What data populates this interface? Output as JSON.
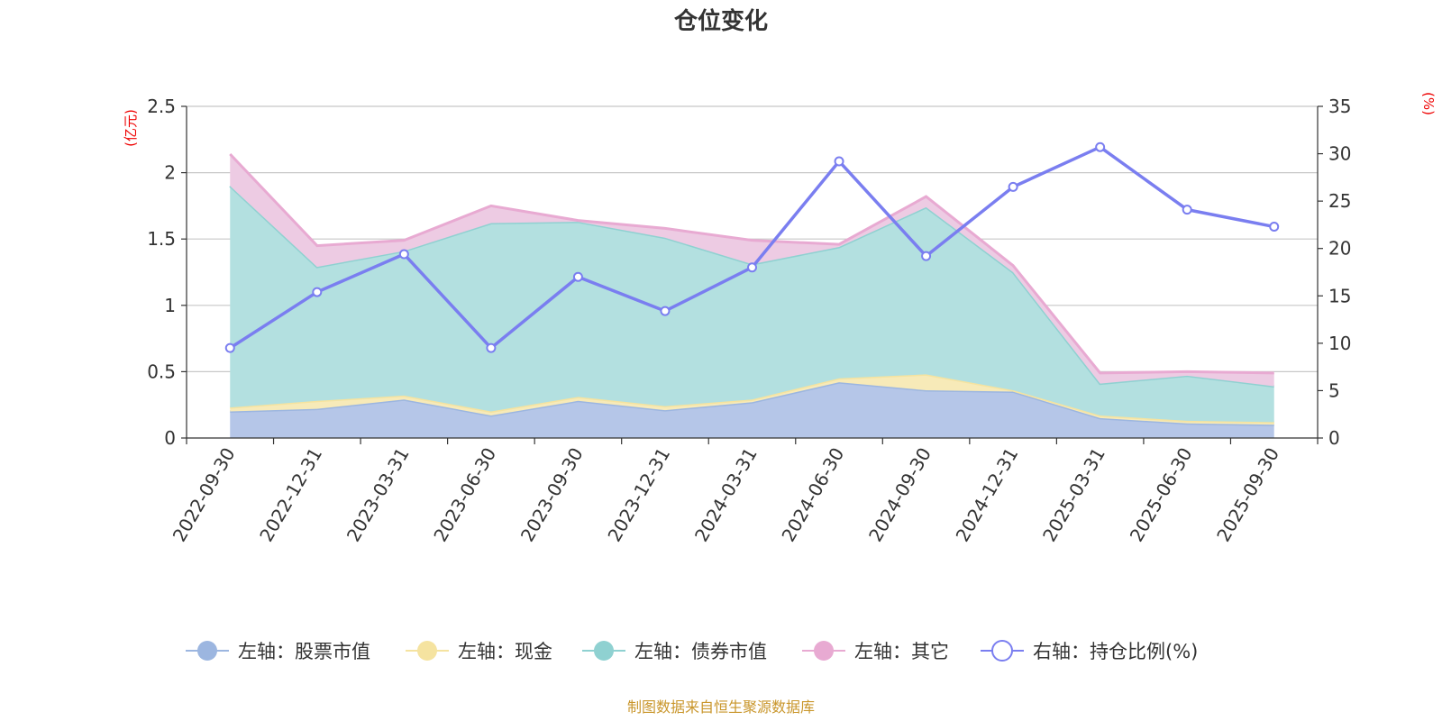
{
  "chart_data": {
    "type": "area",
    "title": "仓位变化",
    "categories": [
      "2022-09-30",
      "2022-12-31",
      "2023-03-31",
      "2023-06-30",
      "2023-09-30",
      "2023-12-31",
      "2024-03-31",
      "2024-06-30",
      "2024-09-30",
      "2024-12-31",
      "2025-03-31",
      "2025-06-30",
      "2025-09-30"
    ],
    "left_axis": {
      "unit": "(亿元)",
      "ylim": [
        0,
        2.5
      ],
      "ticks": [
        "0",
        "0.5",
        "1",
        "1.5",
        "2",
        "2.5"
      ],
      "tick_values": [
        0,
        0.5,
        1,
        1.5,
        2,
        2.5
      ]
    },
    "right_axis": {
      "unit": "(%)",
      "ylim": [
        0,
        35
      ],
      "ticks": [
        "0",
        "5",
        "10",
        "15",
        "20",
        "25",
        "30",
        "35"
      ],
      "tick_values": [
        0,
        5,
        10,
        15,
        20,
        25,
        30,
        35
      ]
    },
    "stacked": true,
    "series": [
      {
        "name": "左轴：股票市值",
        "axis": "left",
        "type": "area",
        "color": "#9cb6e0",
        "fill": "#b5c6e8",
        "values": [
          0.2,
          0.22,
          0.29,
          0.17,
          0.28,
          0.21,
          0.27,
          0.42,
          0.36,
          0.35,
          0.15,
          0.11,
          0.1
        ]
      },
      {
        "name": "左轴：现金",
        "axis": "left",
        "type": "area",
        "color": "#f5e3a0",
        "fill": "#f7eab8",
        "values": [
          0.03,
          0.06,
          0.03,
          0.03,
          0.03,
          0.03,
          0.02,
          0.03,
          0.12,
          0.01,
          0.02,
          0.02,
          0.02
        ]
      },
      {
        "name": "左轴：债券市值",
        "axis": "left",
        "type": "area",
        "color": "#8fd1d1",
        "fill": "#b3e0e0",
        "values": [
          1.67,
          1.01,
          1.09,
          1.42,
          1.32,
          1.27,
          1.02,
          0.99,
          1.26,
          0.89,
          0.24,
          0.34,
          0.27
        ]
      },
      {
        "name": "左轴：其它",
        "axis": "left",
        "type": "area",
        "color": "#e8aad2",
        "fill": "#edcbe3",
        "values": [
          0.24,
          0.16,
          0.08,
          0.13,
          0.01,
          0.07,
          0.18,
          0.02,
          0.08,
          0.05,
          0.08,
          0.03,
          0.1
        ]
      },
      {
        "name": "右轴：持仓比例(%)",
        "axis": "right",
        "type": "line",
        "color": "#7a7ef0",
        "values": [
          9.5,
          15.4,
          19.4,
          9.5,
          17.0,
          13.4,
          18.0,
          29.2,
          19.2,
          26.5,
          30.7,
          24.1,
          22.3
        ]
      }
    ],
    "grid": true,
    "legend_position": "bottom"
  },
  "source_note": "制图数据来自恒生聚源数据库"
}
